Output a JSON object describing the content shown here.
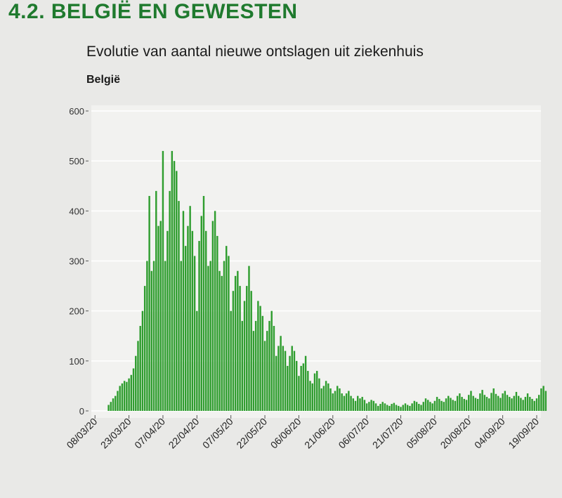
{
  "header": {
    "section_title": "4.2. BELGIË EN GEWESTEN"
  },
  "chart_data": {
    "type": "bar",
    "title": "Evolutie van aantal nieuwe ontslagen uit ziekenhuis",
    "subtitle": "België",
    "xlabel": "",
    "ylabel": "",
    "ylim": [
      0,
      600
    ],
    "yticks": [
      0,
      100,
      200,
      300,
      400,
      500,
      600
    ],
    "xtick_labels": [
      "08/03/20",
      "23/03/20",
      "07/04/20",
      "22/04/20",
      "07/05/20",
      "22/05/20",
      "06/06/20",
      "21/06/20",
      "06/07/20",
      "21/07/20",
      "05/08/20",
      "20/08/20",
      "04/09/20",
      "19/09/20"
    ],
    "bar_color": "#2e9d2e",
    "grid": true,
    "start_date": "2020-03-08",
    "values": [
      0,
      0,
      0,
      0,
      0,
      0,
      12,
      18,
      25,
      30,
      40,
      50,
      55,
      60,
      58,
      65,
      72,
      85,
      110,
      140,
      170,
      200,
      250,
      300,
      430,
      280,
      300,
      440,
      370,
      380,
      520,
      300,
      360,
      440,
      520,
      500,
      480,
      420,
      300,
      400,
      330,
      370,
      410,
      360,
      310,
      200,
      340,
      390,
      430,
      360,
      290,
      300,
      380,
      400,
      350,
      280,
      270,
      300,
      330,
      310,
      200,
      240,
      270,
      280,
      250,
      180,
      220,
      250,
      290,
      240,
      160,
      180,
      220,
      210,
      190,
      140,
      160,
      180,
      200,
      170,
      110,
      130,
      150,
      130,
      120,
      90,
      110,
      130,
      120,
      100,
      70,
      90,
      95,
      110,
      80,
      60,
      55,
      75,
      80,
      65,
      45,
      50,
      60,
      55,
      45,
      35,
      40,
      50,
      45,
      35,
      30,
      35,
      40,
      30,
      25,
      20,
      30,
      25,
      28,
      22,
      15,
      18,
      22,
      20,
      15,
      10,
      14,
      18,
      15,
      12,
      10,
      14,
      16,
      12,
      10,
      8,
      12,
      15,
      12,
      10,
      15,
      20,
      18,
      14,
      12,
      18,
      25,
      22,
      18,
      15,
      20,
      28,
      24,
      20,
      18,
      25,
      30,
      26,
      22,
      20,
      30,
      35,
      28,
      24,
      22,
      32,
      40,
      30,
      26,
      24,
      35,
      42,
      32,
      28,
      25,
      36,
      45,
      34,
      30,
      26,
      35,
      40,
      32,
      28,
      25,
      30,
      38,
      30,
      26,
      22,
      28,
      35,
      28,
      24,
      20,
      25,
      32,
      45,
      50,
      40
    ]
  }
}
